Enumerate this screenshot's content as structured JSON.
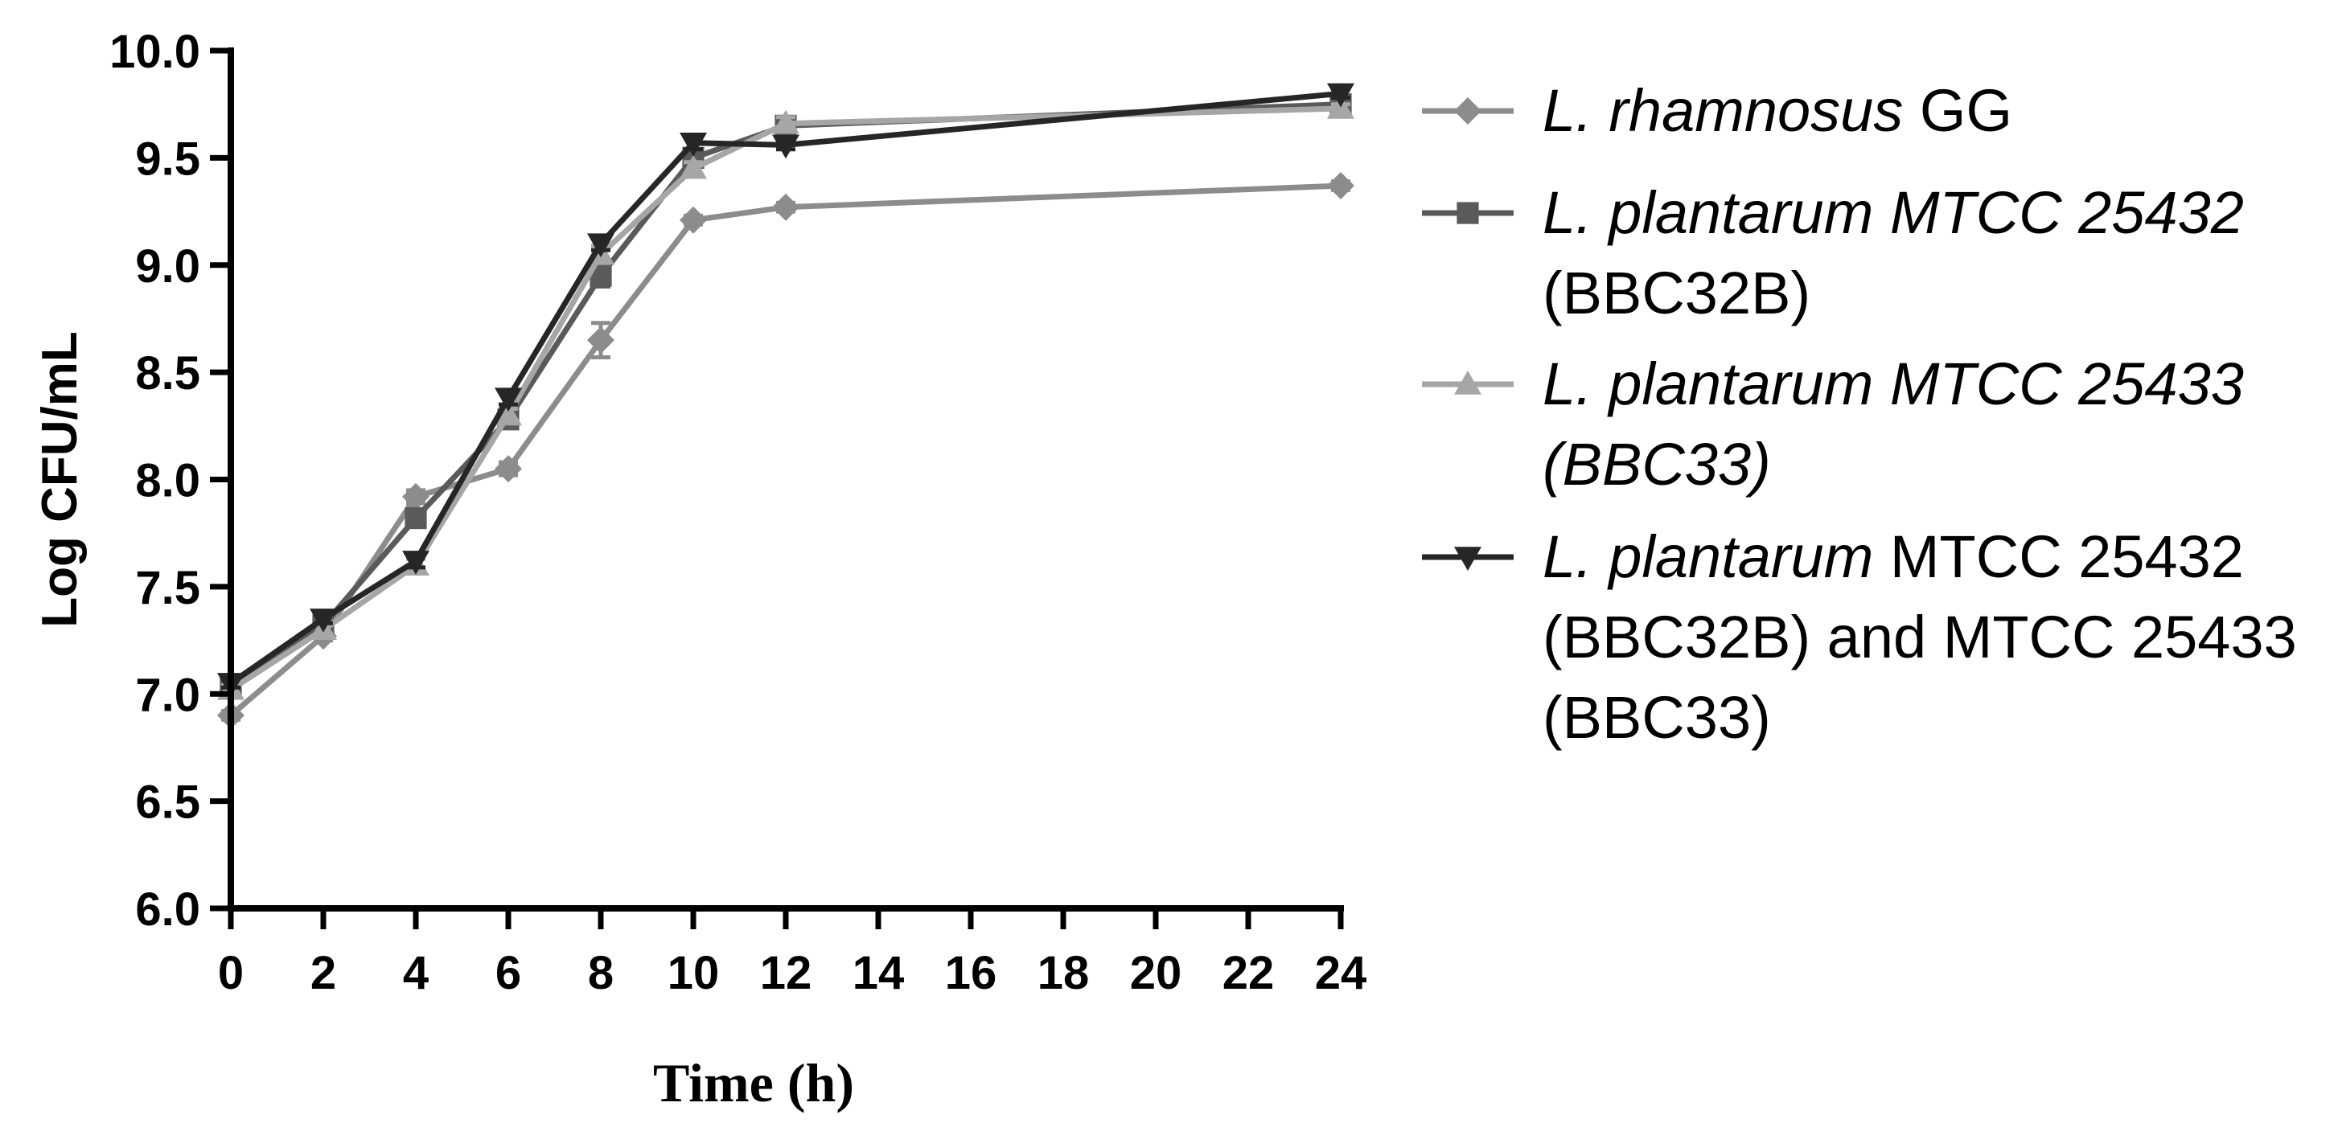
{
  "chart_data": {
    "type": "line",
    "title": "",
    "xlabel": "Time (h)",
    "ylabel": "Log CFU/mL",
    "ylim": [
      6.0,
      10.0
    ],
    "yticks": [
      "6.0",
      "6.5",
      "7.0",
      "7.5",
      "8.0",
      "8.5",
      "9.0",
      "9.5",
      "10.0"
    ],
    "xticks": [
      "0",
      "2",
      "4",
      "6",
      "8",
      "10",
      "12",
      "14",
      "16",
      "18",
      "20",
      "22",
      "24"
    ],
    "x": [
      0,
      2,
      4,
      6,
      8,
      10,
      12,
      24
    ],
    "grid": false,
    "legend_position": "right",
    "series": [
      {
        "name": "L. rhamnosus GG",
        "legend_lines": [
          [
            {
              "t": "L. rhamnosus",
              "i": true
            },
            {
              "t": " GG",
              "i": false
            }
          ]
        ],
        "marker": "diamond",
        "color": "#8c8c8c",
        "values": [
          6.9,
          7.27,
          7.92,
          8.05,
          8.65,
          9.21,
          9.27,
          9.37
        ],
        "errors": [
          0.02,
          0.02,
          0.03,
          0.03,
          0.08,
          0.02,
          0.02,
          0.02
        ]
      },
      {
        "name": "L. plantarum MTCC 25432 (BBC32B)",
        "legend_lines": [
          [
            {
              "t": "L. plantarum MTCC 25432",
              "i": true
            }
          ],
          [
            {
              "t": "(BBC32B)",
              "i": false
            }
          ]
        ],
        "marker": "square",
        "color": "#5a5a5a",
        "values": [
          7.03,
          7.32,
          7.82,
          8.28,
          8.95,
          9.5,
          9.65,
          9.75
        ],
        "errors": [
          0.02,
          0.02,
          0.04,
          0.04,
          0.05,
          0.03,
          0.03,
          0.02
        ]
      },
      {
        "name": "L. plantarum MTCC 25433 (BBC33)",
        "legend_lines": [
          [
            {
              "t": "L. plantarum MTCC 25433",
              "i": true
            }
          ],
          [
            {
              "t": "(BBC33)",
              "i": true
            }
          ]
        ],
        "marker": "triangle-up",
        "color": "#a6a6a6",
        "values": [
          7.02,
          7.3,
          7.6,
          8.3,
          9.05,
          9.45,
          9.66,
          9.73
        ],
        "errors": [
          0.02,
          0.02,
          0.03,
          0.03,
          0.04,
          0.03,
          0.03,
          0.02
        ]
      },
      {
        "name": "L. plantarum MTCC 25432 (BBC32B) and MTCC 25433 (BBC33)",
        "legend_lines": [
          [
            {
              "t": "L. plantarum",
              "i": true
            },
            {
              "t": " MTCC 25432",
              "i": false
            }
          ],
          [
            {
              "t": "(BBC32B) and MTCC 25433",
              "i": false
            }
          ],
          [
            {
              "t": "(BBC33)",
              "i": false
            }
          ]
        ],
        "marker": "triangle-down",
        "color": "#262626",
        "values": [
          7.05,
          7.35,
          7.62,
          8.38,
          9.1,
          9.57,
          9.56,
          9.8
        ],
        "errors": [
          0.02,
          0.02,
          0.03,
          0.03,
          0.03,
          0.03,
          0.02,
          0.02
        ]
      }
    ]
  }
}
